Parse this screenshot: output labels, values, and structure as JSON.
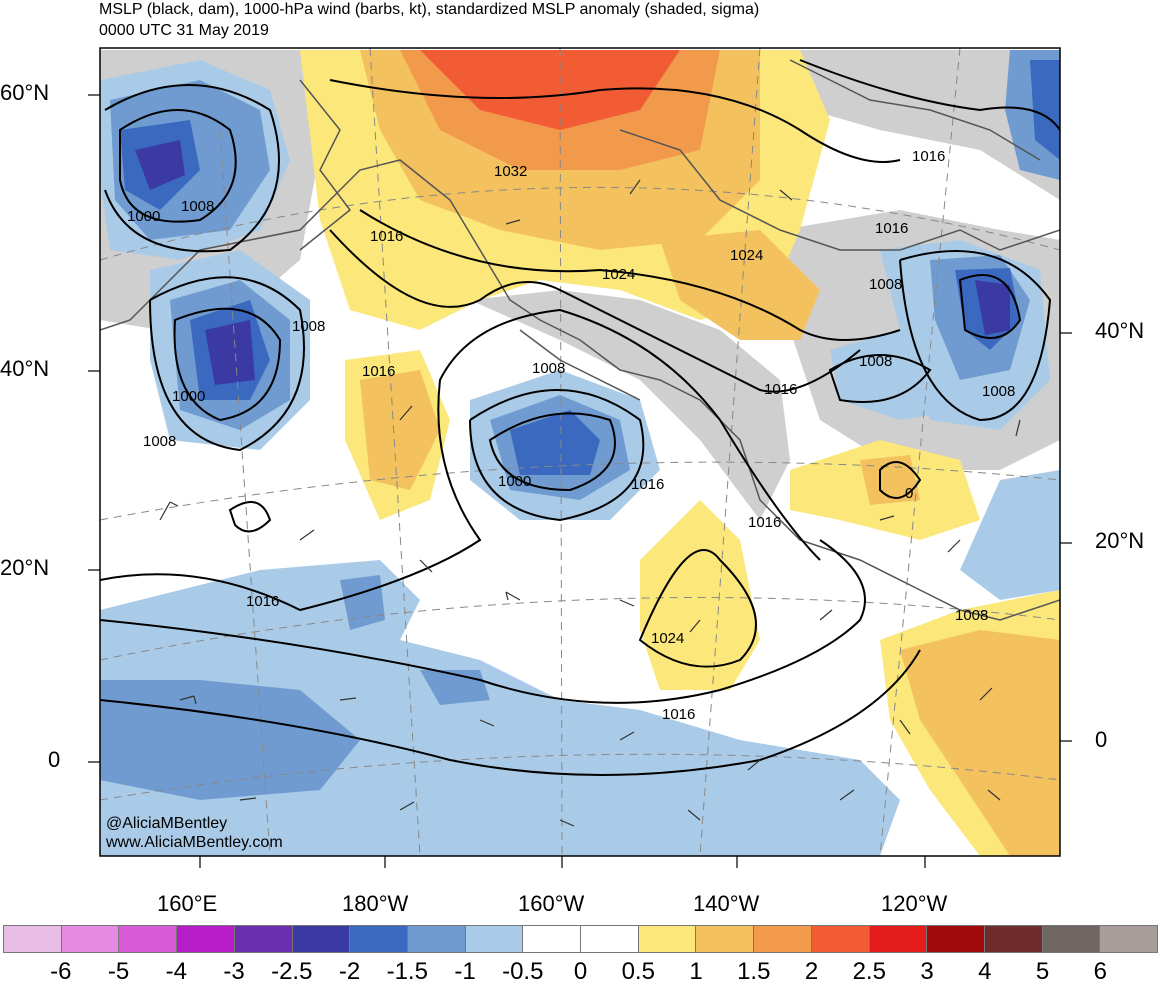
{
  "header": {
    "title": "MSLP (black, dam), 1000-hPa wind (barbs, kt), standardized MSLP anomaly (shaded, sigma)",
    "subtitle": "0000 UTC 31 May 2019"
  },
  "lat_labels": {
    "left": [
      "60°N",
      "40°N",
      "20°N",
      "0"
    ],
    "right": [
      "40°N",
      "20°N",
      "0"
    ]
  },
  "lon_labels": [
    "160°E",
    "180°W",
    "160°W",
    "140°W",
    "120°W"
  ],
  "isobar_labels": [
    {
      "text": "1000"
    },
    {
      "text": "1008"
    },
    {
      "text": "1016"
    },
    {
      "text": "1008"
    },
    {
      "text": "1000"
    },
    {
      "text": "1008"
    },
    {
      "text": "1016"
    },
    {
      "text": "1032"
    },
    {
      "text": "1024"
    },
    {
      "text": "1016"
    },
    {
      "text": "1008"
    },
    {
      "text": "1000"
    },
    {
      "text": "1016"
    },
    {
      "text": "1024"
    },
    {
      "text": "1016"
    },
    {
      "text": "1016"
    },
    {
      "text": "1016"
    },
    {
      "text": "1024"
    },
    {
      "text": "1016"
    },
    {
      "text": "1008"
    },
    {
      "text": "1008"
    },
    {
      "text": "1008"
    },
    {
      "text": "0"
    },
    {
      "text": "1008"
    },
    {
      "text": "1016"
    }
  ],
  "credits": {
    "handle": "@AliciaMBentley",
    "site": "www.AliciaMBentley.com"
  },
  "colorbar": {
    "colors": [
      "#e8bde6",
      "#e68ae3",
      "#d95ad6",
      "#b61cc8",
      "#6a2fb1",
      "#3b3aa3",
      "#3a69bf",
      "#6f9bd1",
      "#aacbe8",
      "#ffffff",
      "#ffffff",
      "#fbe77a",
      "#f3c15d",
      "#f29a4b",
      "#f25c35",
      "#e31b1b",
      "#a10a0a",
      "#6e2c2c",
      "#706765",
      "#a89d9b"
    ],
    "labels": [
      "-6",
      "-5",
      "-4",
      "-3",
      "-2.5",
      "-2",
      "-1.5",
      "-1",
      "-0.5",
      "0",
      "0.5",
      "1",
      "1.5",
      "2",
      "2.5",
      "3",
      "4",
      "5",
      "6"
    ]
  }
}
